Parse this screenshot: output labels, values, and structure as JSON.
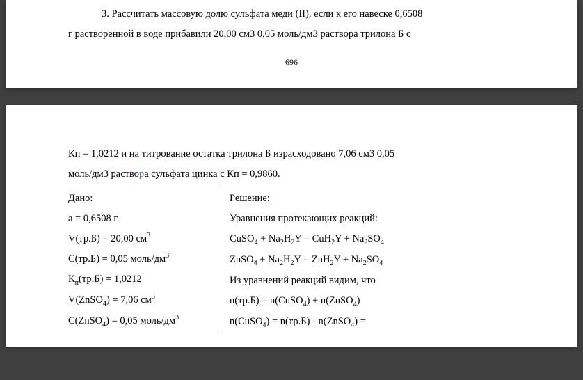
{
  "page_top": {
    "problem_line1": "3. Рассчитать массовую долю сульфата меди (II), если к его навеске 0,6508",
    "problem_line2": "г растворенной в воде прибавили 20,00 см3 0,05 моль/дм3 раствора трилона Б с",
    "page_number": "696"
  },
  "page_bottom": {
    "cont_line1": "Кп = 1,0212 и на титрование остатка трилона Б израсходовано 7,06 см3 0,05",
    "cont_line2_a": "моль/дм3 раство",
    "cont_line2_b": "а сульфата цинка с Кп = 0,9860.",
    "given": {
      "title": "Дано:",
      "r1": "a = 0,6508 г",
      "r2_pre": "V(тр.Б) = 20,00 см",
      "r2_sup": "3",
      "r3_pre": "С(тр.Б) = 0,05 моль/дм",
      "r3_sup": "3",
      "r4_pre": "К",
      "r4_sub": "п",
      "r4_post": "(тр.Б) = 1,0212",
      "r5_pre": "V(ZnSO",
      "r5_sub": "4",
      "r5_mid": ") = 7,06 см",
      "r5_sup": "3",
      "r6_pre": "С(ZnSO",
      "r6_sub": "4",
      "r6_mid": ") = 0,05 моль/дм",
      "r6_sup": "3"
    },
    "solution": {
      "title": "Решение:",
      "r1": "Уравнения протекающих реакций:",
      "eq1_a": "CuSO",
      "eq1_b": " + Na",
      "eq1_c": "H",
      "eq1_d": "Y = CuH",
      "eq1_e": "Y + Na",
      "eq1_f": "SO",
      "eq2_a": "ZnSO",
      "eq2_b": " + Na",
      "eq2_c": "H",
      "eq2_d": "Y = ZnH",
      "eq2_e": "Y + Na",
      "eq2_f": "SO",
      "r4": "Из уравнений реакций видим, что",
      "r5_a": "n(тр.Б) = n(CuSO",
      "r5_b": ") + n(ZnSO",
      "r5_c": ")",
      "r6_a": "n(CuSO",
      "r6_b": ") = n(тр.Б) - n(ZnSO",
      "r6_c": ") ="
    }
  },
  "style": {
    "bg": "#3f3f3f",
    "paper": "#ffffff",
    "text": "#000000",
    "cursor": "#3b6fd6",
    "font_family": "Times New Roman",
    "font_size_pt": 11,
    "line_height": 2
  }
}
